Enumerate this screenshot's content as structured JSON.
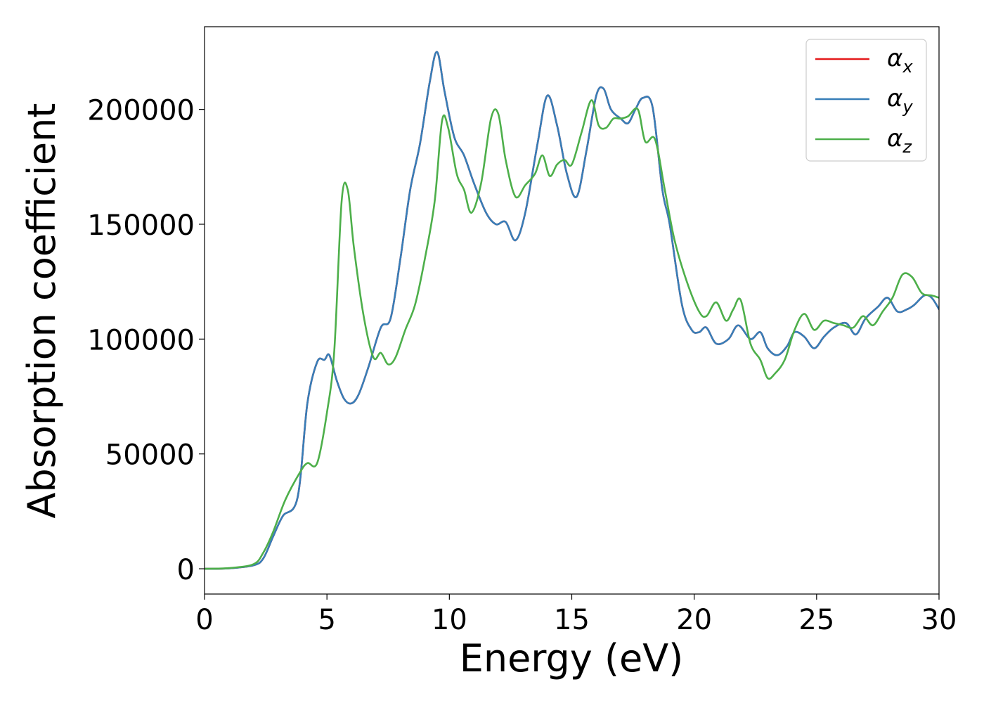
{
  "chart_data": {
    "type": "line",
    "title": "",
    "xlabel": "Energy (eV)",
    "ylabel": "Absorption coefficient",
    "xlim": [
      0,
      30
    ],
    "ylim": [
      -11000,
      236000
    ],
    "xticks": [
      0,
      5,
      10,
      15,
      20,
      25,
      30
    ],
    "xtick_labels": [
      "0",
      "5",
      "10",
      "15",
      "20",
      "25",
      "30"
    ],
    "yticks": [
      0,
      50000,
      100000,
      150000,
      200000
    ],
    "ytick_labels": [
      "0",
      "50000",
      "100000",
      "150000",
      "200000"
    ],
    "grid": false,
    "legend": {
      "placement": "top-right",
      "entries": [
        {
          "symbol": "α",
          "subscript": "x",
          "color": "#e41a1c"
        },
        {
          "symbol": "α",
          "subscript": "y",
          "color": "#377eb8"
        },
        {
          "symbol": "α",
          "subscript": "z",
          "color": "#4daf4a"
        }
      ]
    },
    "series": [
      {
        "name": "αx",
        "color": "#e41a1c",
        "x": [
          0,
          1,
          2,
          2.4,
          2.8,
          3.2,
          3.8,
          4.2,
          4.6,
          4.9,
          5.1,
          5.4,
          5.7,
          6.0,
          6.3,
          6.7,
          7.2,
          7.6,
          8.0,
          8.4,
          8.8,
          9.2,
          9.5,
          9.8,
          10.2,
          10.6,
          11.0,
          11.5,
          11.9,
          12.3,
          12.7,
          13.1,
          13.6,
          14.0,
          14.4,
          14.8,
          15.2,
          15.6,
          16.0,
          16.3,
          16.6,
          17.0,
          17.3,
          17.6,
          17.9,
          18.3,
          18.7,
          19.0,
          19.5,
          19.9,
          20.2,
          20.5,
          20.9,
          21.4,
          21.8,
          22.3,
          22.7,
          23.0,
          23.4,
          23.8,
          24.1,
          24.5,
          24.9,
          25.3,
          25.7,
          26.2,
          26.6,
          27.0,
          27.5,
          27.9,
          28.3,
          28.7,
          29.0,
          29.4,
          29.7,
          30.0
        ],
        "y": [
          0,
          200,
          1500,
          4500,
          14000,
          23000,
          31000,
          72000,
          90000,
          91000,
          93000,
          82000,
          74000,
          72000,
          76000,
          88000,
          105000,
          109000,
          135000,
          165000,
          185000,
          212000,
          225000,
          208000,
          188000,
          180000,
          168000,
          155000,
          150000,
          151000,
          143000,
          155000,
          185000,
          206000,
          193000,
          172000,
          162000,
          182000,
          206000,
          209000,
          200000,
          196000,
          194000,
          200000,
          205000,
          201000,
          165000,
          150000,
          115000,
          104000,
          103000,
          105000,
          98000,
          100000,
          106000,
          100000,
          103000,
          96000,
          93000,
          97000,
          103000,
          101000,
          96000,
          101000,
          105000,
          107000,
          102000,
          109000,
          114000,
          118000,
          112000,
          113000,
          115000,
          119000,
          118000,
          113000
        ]
      },
      {
        "name": "αy",
        "color": "#377eb8",
        "x": [
          0,
          1,
          2,
          2.4,
          2.8,
          3.2,
          3.8,
          4.2,
          4.6,
          4.9,
          5.1,
          5.4,
          5.7,
          6.0,
          6.3,
          6.7,
          7.2,
          7.6,
          8.0,
          8.4,
          8.8,
          9.2,
          9.5,
          9.8,
          10.2,
          10.6,
          11.0,
          11.5,
          11.9,
          12.3,
          12.7,
          13.1,
          13.6,
          14.0,
          14.4,
          14.8,
          15.2,
          15.6,
          16.0,
          16.3,
          16.6,
          17.0,
          17.3,
          17.6,
          17.9,
          18.3,
          18.7,
          19.0,
          19.5,
          19.9,
          20.2,
          20.5,
          20.9,
          21.4,
          21.8,
          22.3,
          22.7,
          23.0,
          23.4,
          23.8,
          24.1,
          24.5,
          24.9,
          25.3,
          25.7,
          26.2,
          26.6,
          27.0,
          27.5,
          27.9,
          28.3,
          28.7,
          29.0,
          29.4,
          29.7,
          30.0
        ],
        "y": [
          0,
          200,
          1500,
          4500,
          14000,
          23000,
          31000,
          72000,
          90000,
          91000,
          93000,
          82000,
          74000,
          72000,
          76000,
          88000,
          105000,
          109000,
          135000,
          165000,
          185000,
          212000,
          225000,
          208000,
          188000,
          180000,
          168000,
          155000,
          150000,
          151000,
          143000,
          155000,
          185000,
          206000,
          193000,
          172000,
          162000,
          182000,
          206000,
          209000,
          200000,
          196000,
          194000,
          200000,
          205000,
          201000,
          165000,
          150000,
          115000,
          104000,
          103000,
          105000,
          98000,
          100000,
          106000,
          100000,
          103000,
          96000,
          93000,
          97000,
          103000,
          101000,
          96000,
          101000,
          105000,
          107000,
          102000,
          109000,
          114000,
          118000,
          112000,
          113000,
          115000,
          119000,
          118000,
          113000
        ]
      },
      {
        "name": "αz",
        "color": "#4daf4a",
        "x": [
          0,
          1,
          2,
          2.4,
          2.8,
          3.3,
          3.9,
          4.2,
          4.6,
          5.0,
          5.3,
          5.6,
          5.85,
          6.1,
          6.5,
          6.9,
          7.2,
          7.5,
          7.8,
          8.2,
          8.6,
          9.0,
          9.4,
          9.7,
          9.95,
          10.3,
          10.6,
          10.9,
          11.3,
          11.7,
          12.0,
          12.3,
          12.7,
          13.1,
          13.5,
          13.8,
          14.1,
          14.4,
          14.7,
          15.0,
          15.4,
          15.8,
          16.1,
          16.4,
          16.7,
          17.0,
          17.3,
          17.7,
          18.0,
          18.4,
          18.8,
          19.2,
          19.7,
          20.2,
          20.5,
          20.9,
          21.3,
          21.6,
          21.9,
          22.3,
          22.7,
          23.0,
          23.3,
          23.7,
          24.1,
          24.5,
          24.9,
          25.3,
          25.7,
          26.1,
          26.5,
          26.9,
          27.3,
          27.7,
          28.1,
          28.5,
          28.9,
          29.3,
          29.7,
          30.0
        ],
        "y": [
          0,
          300,
          2000,
          7000,
          16000,
          30000,
          42000,
          46000,
          46000,
          68000,
          95000,
          160000,
          165000,
          140000,
          110000,
          92000,
          94000,
          89000,
          92000,
          104000,
          115000,
          135000,
          160000,
          195000,
          192000,
          172000,
          165000,
          155000,
          168000,
          196000,
          198000,
          178000,
          162000,
          167000,
          172000,
          180000,
          171000,
          176000,
          178000,
          176000,
          190000,
          204000,
          193000,
          192000,
          196000,
          196000,
          197000,
          200000,
          186000,
          187000,
          165000,
          143000,
          125000,
          112000,
          110000,
          116000,
          108000,
          113000,
          117000,
          98000,
          91000,
          83000,
          85000,
          91000,
          104000,
          111000,
          104000,
          108000,
          107000,
          106000,
          105000,
          110000,
          106000,
          112000,
          118000,
          128000,
          127000,
          120000,
          119000,
          118000
        ]
      }
    ]
  }
}
